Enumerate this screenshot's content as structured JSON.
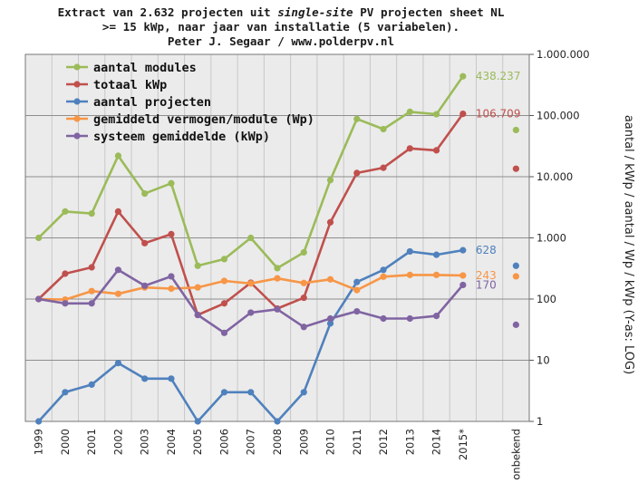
{
  "title": {
    "line1_pre": "Extract van 2.632 projecten uit ",
    "line1_em": "single-site",
    "line1_post": " PV projecten sheet NL",
    "line2": ">= 15 kWp, naar jaar van installatie (5 variabelen).",
    "line3": "Peter J. Segaar / www.polderpv.nl"
  },
  "chart_data": {
    "type": "line",
    "title": "Extract van 2.632 projecten uit single-site PV projecten sheet NL >= 15 kWp, naar jaar van installatie (5 variabelen). Peter J. Segaar / www.polderpv.nl",
    "ylabel": "aantal / kWp / aantal / Wp / kWp (Y-as: LOG)",
    "yscale": "log",
    "ylim": [
      1,
      1000000
    ],
    "yticks": [
      "1",
      "10",
      "100",
      "1.000",
      "10.000",
      "100.000",
      "1.000.000"
    ],
    "categories": [
      "1999",
      "2000",
      "2001",
      "2002",
      "2003",
      "2004",
      "2005",
      "2006",
      "2007",
      "2008",
      "2009",
      "2010",
      "2011",
      "2012",
      "2013",
      "2014",
      "2015*",
      "",
      "onbekend"
    ],
    "grid": true,
    "legend_position": "top-left",
    "series": [
      {
        "name": "aantal modules",
        "color": "#9bbb59",
        "values": [
          1000,
          2700,
          2500,
          22000,
          5300,
          7800,
          350,
          450,
          1000,
          320,
          580,
          8800,
          88000,
          60000,
          115000,
          105000,
          438237,
          null,
          58000
        ]
      },
      {
        "name": "totaal kWp",
        "color": "#c0504d",
        "values": [
          100,
          260,
          330,
          2700,
          820,
          1150,
          55,
          85,
          185,
          70,
          105,
          1800,
          11500,
          14000,
          29000,
          27000,
          106709,
          null,
          13500
        ]
      },
      {
        "name": "aantal projecten",
        "color": "#4f81bd",
        "values": [
          1,
          3,
          4,
          9,
          5,
          5,
          1,
          3,
          3,
          1,
          3,
          40,
          190,
          300,
          600,
          530,
          628,
          null,
          350
        ]
      },
      {
        "name": "gemiddeld vermogen/module (Wp)",
        "color": "#f79646",
        "values": [
          100,
          98,
          135,
          122,
          155,
          148,
          155,
          198,
          180,
          218,
          183,
          210,
          140,
          232,
          248,
          248,
          243,
          null,
          235
        ]
      },
      {
        "name": "systeem gemiddelde (kWp)",
        "color": "#8064a2",
        "values": [
          100,
          85,
          85,
          300,
          165,
          235,
          55,
          28,
          60,
          68,
          35,
          48,
          63,
          48,
          48,
          53,
          170,
          null,
          38
        ]
      }
    ],
    "end_labels": [
      "438.237",
      "106.709",
      "628",
      "243",
      "170"
    ]
  }
}
